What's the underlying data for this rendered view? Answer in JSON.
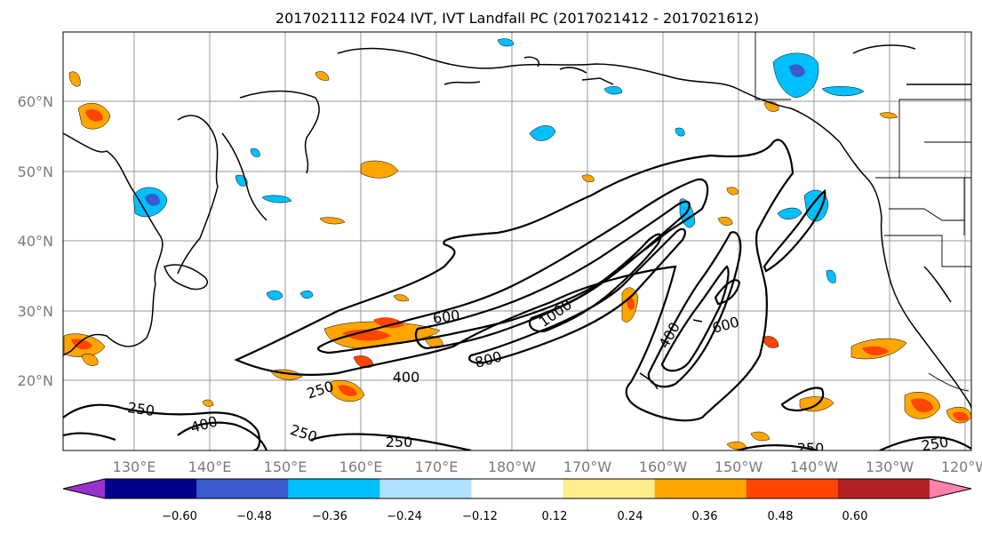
{
  "title": "2017021112 F024 IVT, IVT Landfall PC (2017021412 - 2017021612)",
  "y_ticks": [
    "60°N",
    "50°N",
    "40°N",
    "30°N",
    "20°N"
  ],
  "x_ticks": [
    "130°E",
    "140°E",
    "150°E",
    "160°E",
    "170°E",
    "180°W",
    "170°W",
    "160°W",
    "150°W",
    "140°W",
    "130°W",
    "120°W"
  ],
  "colorbar": {
    "colors": [
      "#9932cc",
      "#00008b",
      "#3a5acd",
      "#00bfff",
      "#b0e2ff",
      "#ffffff",
      "#ffec8b",
      "#ffa500",
      "#ff4500",
      "#b22222",
      "#ff82ab"
    ],
    "ticks": [
      "−0.60",
      "−0.48",
      "−0.36",
      "−0.24",
      "−0.12",
      "0.12",
      "0.24",
      "0.36",
      "0.48",
      "0.60"
    ]
  },
  "contour_labels": {
    "c600a": "600",
    "c1000": "1000",
    "c800": "800",
    "c400a": "400",
    "c250a": "250",
    "c400b": "400",
    "c600b": "600",
    "c250b": "250",
    "c400c": "400",
    "c250c": "250",
    "c250d": "250",
    "c250e": "250",
    "c250f": "250"
  }
}
